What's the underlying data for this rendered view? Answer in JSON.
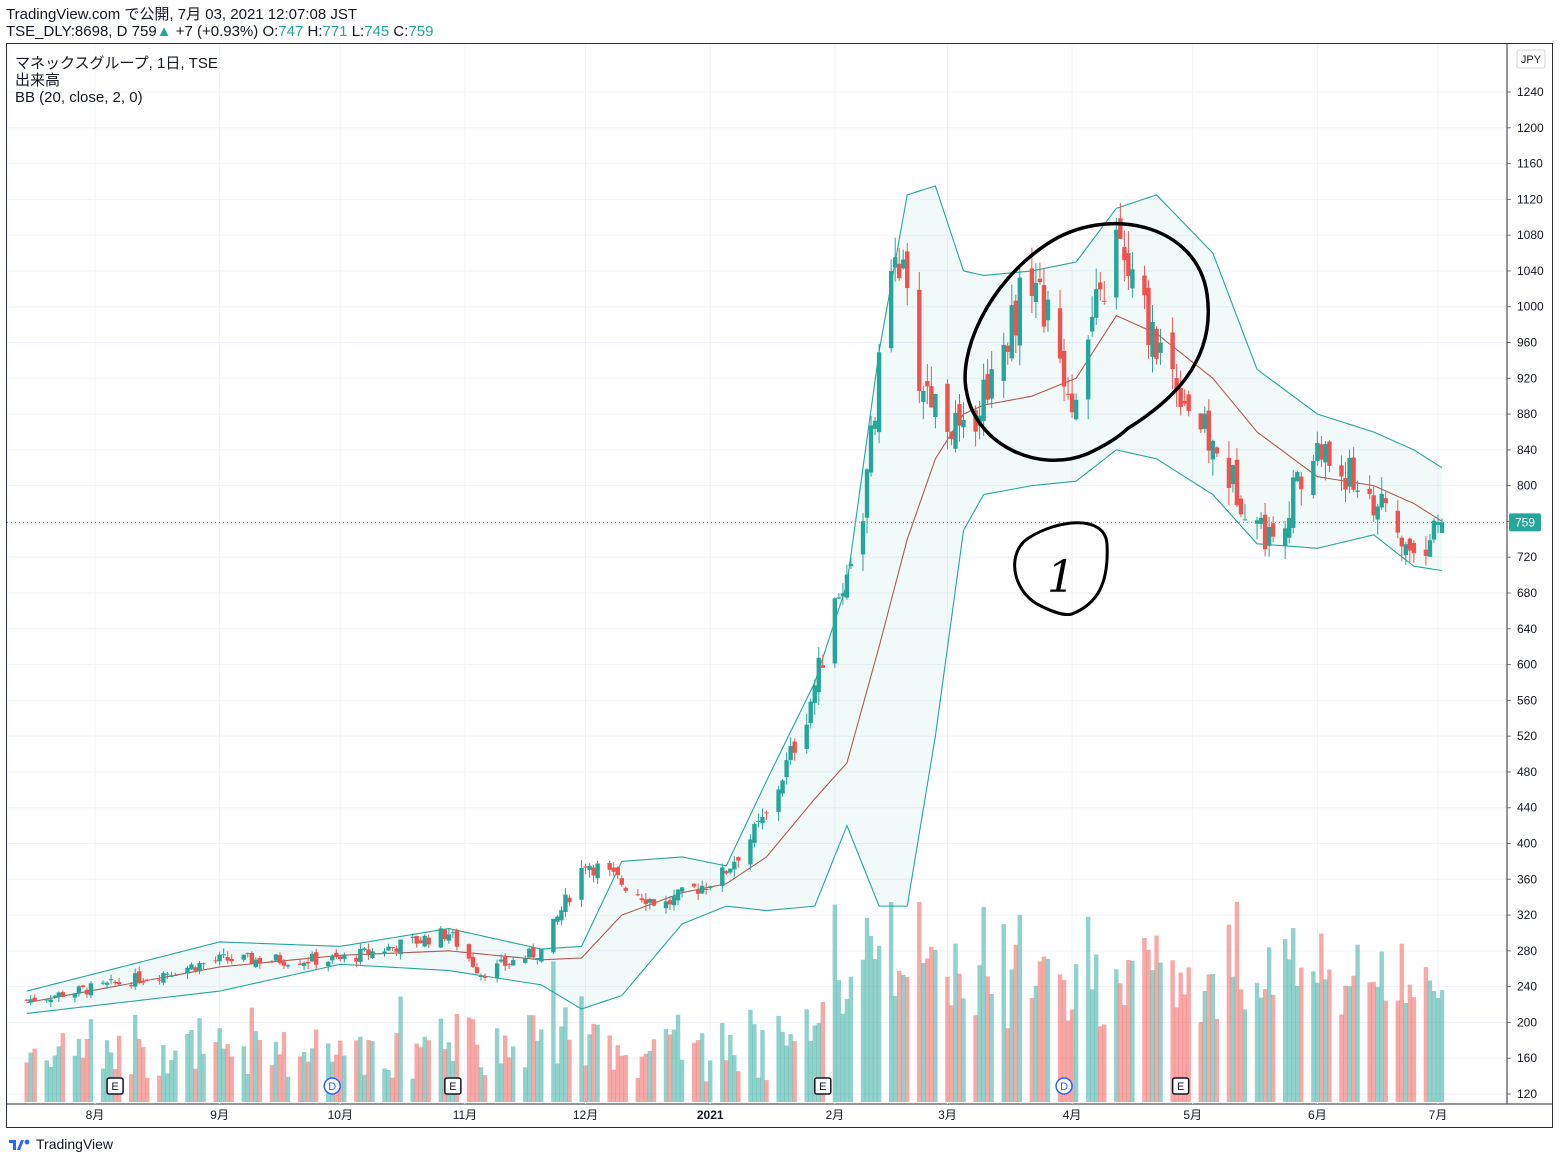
{
  "header": {
    "publish_line": "TradingView.com で公開, 7月 03, 2021 12:07:08 JST",
    "symbol": "TSE_DLY:8698, D",
    "last": "759",
    "change": "+7 (+0.93%)",
    "o_label": "O:",
    "o": "747",
    "h_label": "H:",
    "h": "771",
    "l_label": "L:",
    "l": "745",
    "c_label": "C:",
    "c": "759"
  },
  "legend": {
    "title": "マネックスグループ, 1日, TSE",
    "volume": "出来高",
    "bb": "BB (20, close, 2, 0)"
  },
  "currency": "JPY",
  "price_tag": "759",
  "footer_brand": "TradingView",
  "colors": {
    "up": "#26a69a",
    "down": "#ef5350",
    "band": "#26a69a",
    "basis": "#b05a53",
    "handdrawn": "#000000"
  },
  "annotations": {
    "handwritten_number": "1"
  },
  "events": [
    {
      "date": "2020-08-06",
      "label": "E"
    },
    {
      "date": "2020-09-29",
      "label": "D"
    },
    {
      "date": "2020-10-29",
      "label": "E"
    },
    {
      "date": "2021-01-29",
      "label": "E"
    },
    {
      "date": "2021-03-30",
      "label": "D"
    },
    {
      "date": "2021-04-28",
      "label": "E"
    }
  ],
  "chart_data": {
    "type": "candlestick",
    "title": "マネックスグループ, 1日, TSE",
    "x_ticks": [
      "8月",
      "9月",
      "10月",
      "11月",
      "12月",
      "2021",
      "2月",
      "3月",
      "4月",
      "5月",
      "6月",
      "7月"
    ],
    "y_ticks": [
      120,
      160,
      200,
      240,
      280,
      320,
      360,
      400,
      440,
      480,
      520,
      560,
      600,
      640,
      680,
      720,
      760,
      800,
      840,
      880,
      920,
      960,
      1000,
      1040,
      1080,
      1120,
      1160,
      1200,
      1240
    ],
    "ylim": [
      110,
      1270
    ],
    "last_close": 759,
    "ohlc_keypoints": [
      {
        "date": "2020-07-15",
        "close": 225
      },
      {
        "date": "2020-08-03",
        "close": 240
      },
      {
        "date": "2020-09-01",
        "close": 270
      },
      {
        "date": "2020-10-01",
        "close": 270
      },
      {
        "date": "2020-10-28",
        "close": 300
      },
      {
        "date": "2020-11-05",
        "close": 255
      },
      {
        "date": "2020-11-20",
        "close": 280
      },
      {
        "date": "2020-12-01",
        "close": 380
      },
      {
        "date": "2020-12-20",
        "close": 330
      },
      {
        "date": "2021-01-04",
        "close": 365
      },
      {
        "date": "2021-01-15",
        "close": 430
      },
      {
        "date": "2021-01-25",
        "close": 545
      },
      {
        "date": "2021-02-08",
        "close": 770
      },
      {
        "date": "2021-02-16",
        "close": 1080
      },
      {
        "date": "2021-02-22",
        "close": 920
      },
      {
        "date": "2021-03-05",
        "close": 850
      },
      {
        "date": "2021-03-22",
        "close": 1040
      },
      {
        "date": "2021-04-01",
        "close": 900
      },
      {
        "date": "2021-04-12",
        "close": 1070
      },
      {
        "date": "2021-04-20",
        "close": 980
      },
      {
        "date": "2021-05-06",
        "close": 840
      },
      {
        "date": "2021-05-20",
        "close": 740
      },
      {
        "date": "2021-06-01",
        "close": 840
      },
      {
        "date": "2021-06-14",
        "close": 790
      },
      {
        "date": "2021-06-25",
        "close": 720
      },
      {
        "date": "2021-07-02",
        "close": 759
      }
    ],
    "bollinger_keypoints": [
      {
        "date": "2020-07-15",
        "upper": 235,
        "basis": 222,
        "lower": 210
      },
      {
        "date": "2020-09-01",
        "upper": 290,
        "basis": 262,
        "lower": 235
      },
      {
        "date": "2020-10-01",
        "upper": 285,
        "basis": 275,
        "lower": 265
      },
      {
        "date": "2020-10-28",
        "upper": 305,
        "basis": 280,
        "lower": 258
      },
      {
        "date": "2020-11-20",
        "upper": 282,
        "basis": 270,
        "lower": 242
      },
      {
        "date": "2020-11-30",
        "upper": 285,
        "basis": 272,
        "lower": 215
      },
      {
        "date": "2020-12-10",
        "upper": 380,
        "basis": 320,
        "lower": 230
      },
      {
        "date": "2020-12-25",
        "upper": 385,
        "basis": 345,
        "lower": 310
      },
      {
        "date": "2021-01-05",
        "upper": 375,
        "basis": 355,
        "lower": 330
      },
      {
        "date": "2021-01-15",
        "upper": 470,
        "basis": 385,
        "lower": 325
      },
      {
        "date": "2021-01-27",
        "upper": 580,
        "basis": 450,
        "lower": 330
      },
      {
        "date": "2021-02-04",
        "upper": 690,
        "basis": 490,
        "lower": 420
      },
      {
        "date": "2021-02-12",
        "upper": 950,
        "basis": 620,
        "lower": 330
      },
      {
        "date": "2021-02-19",
        "upper": 1125,
        "basis": 740,
        "lower": 330
      },
      {
        "date": "2021-02-26",
        "upper": 1135,
        "basis": 830,
        "lower": 520
      },
      {
        "date": "2021-03-05",
        "upper": 1040,
        "basis": 880,
        "lower": 750
      },
      {
        "date": "2021-03-10",
        "upper": 1035,
        "basis": 890,
        "lower": 790
      },
      {
        "date": "2021-03-22",
        "upper": 1040,
        "basis": 900,
        "lower": 800
      },
      {
        "date": "2021-04-02",
        "upper": 1050,
        "basis": 920,
        "lower": 805
      },
      {
        "date": "2021-04-12",
        "upper": 1110,
        "basis": 990,
        "lower": 840
      },
      {
        "date": "2021-04-22",
        "upper": 1125,
        "basis": 970,
        "lower": 830
      },
      {
        "date": "2021-05-06",
        "upper": 1060,
        "basis": 920,
        "lower": 790
      },
      {
        "date": "2021-05-17",
        "upper": 930,
        "basis": 860,
        "lower": 735
      },
      {
        "date": "2021-06-01",
        "upper": 880,
        "basis": 810,
        "lower": 730
      },
      {
        "date": "2021-06-15",
        "upper": 860,
        "basis": 800,
        "lower": 745
      },
      {
        "date": "2021-06-25",
        "upper": 840,
        "basis": 780,
        "lower": 710
      },
      {
        "date": "2021-07-02",
        "upper": 820,
        "basis": 760,
        "lower": 705
      }
    ]
  }
}
